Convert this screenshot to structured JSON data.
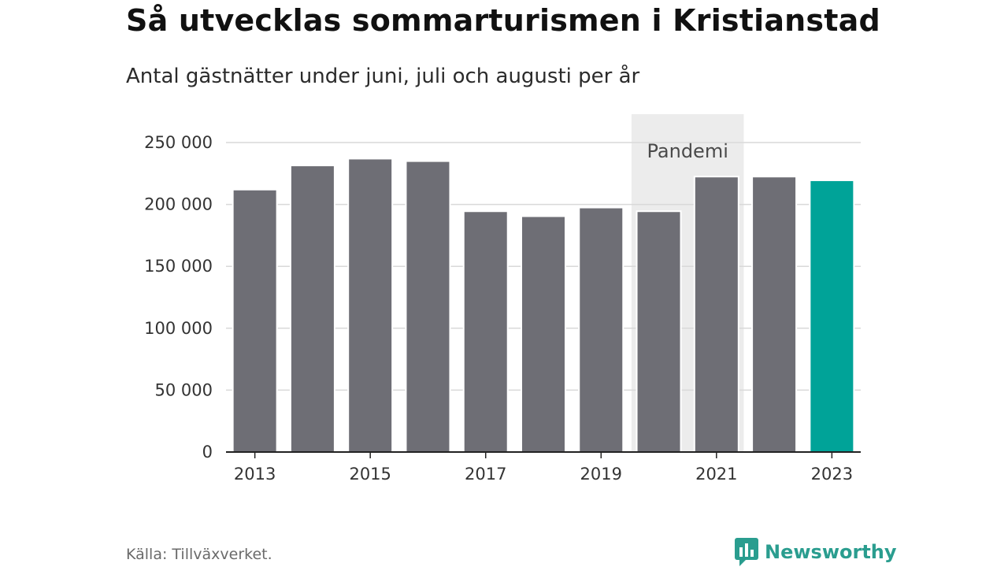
{
  "title": "Så utvecklas sommarturismen i Kristianstad",
  "subtitle": "Antal gästnätter under juni, juli och augusti per år",
  "source": "Källa: Tillväxverket.",
  "brand": {
    "name": "Newsworthy",
    "icon": "newsworthy-logo-icon",
    "color": "#2a9d8f"
  },
  "colors": {
    "bar": "#6e6e75",
    "highlight": "#00a398",
    "band": "#ececec",
    "grid": "#d9d9d9",
    "axis": "#222222"
  },
  "chart_data": {
    "type": "bar",
    "categories": [
      "2013",
      "2014",
      "2015",
      "2016",
      "2017",
      "2018",
      "2019",
      "2020",
      "2021",
      "2022",
      "2023"
    ],
    "values": [
      212000,
      231500,
      237000,
      235000,
      194500,
      190500,
      197500,
      194500,
      222500,
      222500,
      219500
    ],
    "highlight_category": "2023",
    "ylim": [
      0,
      250000
    ],
    "yticks": [
      0,
      50000,
      100000,
      150000,
      200000,
      250000
    ],
    "ytick_labels": [
      "0",
      "50 000",
      "100 000",
      "150 000",
      "200 000",
      "250 000"
    ],
    "xtick_labels": [
      "2013",
      "2015",
      "2017",
      "2019",
      "2021",
      "2023"
    ],
    "annotation": {
      "label": "Pandemi",
      "from": "2020",
      "to": "2021"
    },
    "grid": true,
    "xlabel": "",
    "ylabel": ""
  }
}
